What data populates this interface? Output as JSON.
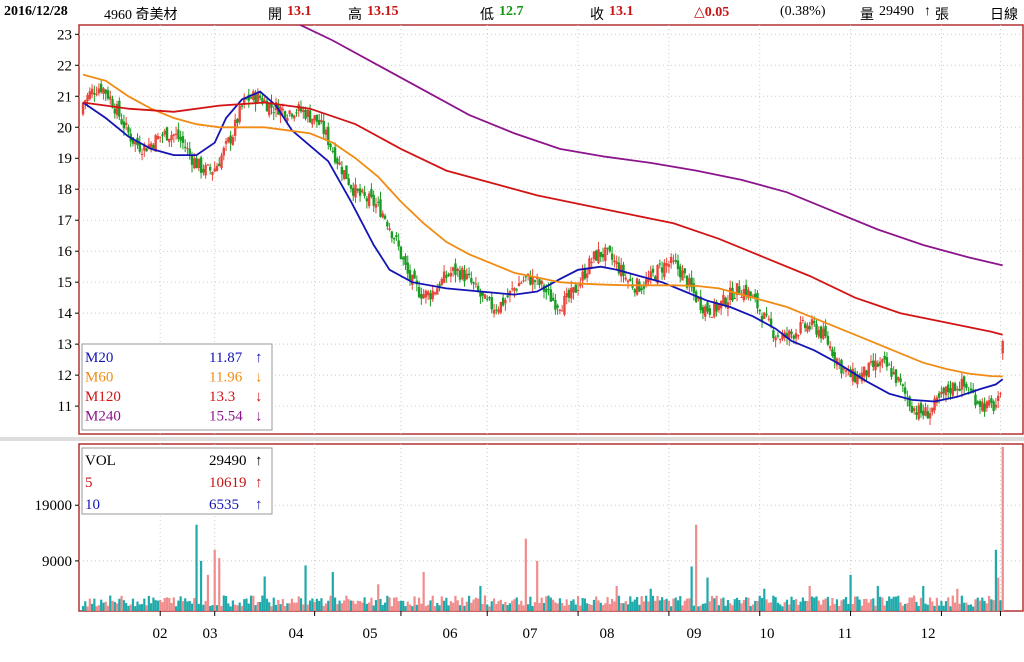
{
  "header": {
    "date": "2016/12/28",
    "stock": "4960 奇美材",
    "open_label": "開",
    "open": "13.1",
    "high_label": "高",
    "high": "13.15",
    "low_label": "低",
    "low": "12.7",
    "close_label": "收",
    "close": "13.1",
    "change": "△0.05",
    "change_pct": "(0.38%)",
    "volume_label": "量",
    "volume": "29490",
    "volume_unit": "張",
    "period": "日線"
  },
  "colors": {
    "up": "#E8453C",
    "down": "#1A9C22",
    "ma20": "#1414B4",
    "ma60": "#F08C14",
    "ma120": "#D21414",
    "ma240": "#8C148C",
    "vol_up": "#F08C8C",
    "vol_down": "#1EAAAA",
    "frame": "#B43232",
    "grid": "#CCCCCC"
  },
  "chart_data": [
    {
      "type": "candlestick",
      "y_ticks": [
        11,
        12,
        13,
        14,
        15,
        16,
        17,
        18,
        19,
        20,
        21,
        22,
        23
      ],
      "ylim": [
        10.1,
        23.3
      ],
      "x_ticks": [
        "02",
        "03",
        "04",
        "05",
        "06",
        "07",
        "08",
        "09",
        "10",
        "11",
        "12"
      ],
      "legend": [
        {
          "name": "M20",
          "value": "11.87",
          "arrow": "↑"
        },
        {
          "name": "M60",
          "value": "11.96",
          "arrow": "↓"
        },
        {
          "name": "M120",
          "value": "13.3",
          "arrow": "↓"
        },
        {
          "name": "M240",
          "value": "15.54",
          "arrow": "↓"
        }
      ],
      "ma_series": {
        "M20": [
          [
            0,
            20.8
          ],
          [
            10,
            20.3
          ],
          [
            20,
            19.7
          ],
          [
            30,
            19.3
          ],
          [
            40,
            19.1
          ],
          [
            50,
            19.1
          ],
          [
            58,
            19.5
          ],
          [
            63,
            20.3
          ],
          [
            70,
            20.9
          ],
          [
            78,
            21.15
          ],
          [
            85,
            20.7
          ],
          [
            92,
            19.9
          ],
          [
            100,
            19.4
          ],
          [
            108,
            18.9
          ],
          [
            118,
            17.6
          ],
          [
            128,
            16.2
          ],
          [
            135,
            15.4
          ],
          [
            145,
            15.0
          ],
          [
            160,
            14.8
          ],
          [
            175,
            14.7
          ],
          [
            190,
            14.6
          ],
          [
            200,
            14.7
          ],
          [
            210,
            15.1
          ],
          [
            218,
            15.4
          ],
          [
            228,
            15.5
          ],
          [
            235,
            15.4
          ],
          [
            245,
            15.2
          ],
          [
            255,
            15.0
          ],
          [
            265,
            14.7
          ],
          [
            275,
            14.4
          ],
          [
            285,
            14.2
          ],
          [
            295,
            13.9
          ],
          [
            305,
            13.5
          ],
          [
            312,
            13.1
          ],
          [
            322,
            12.8
          ],
          [
            332,
            12.4
          ],
          [
            345,
            11.8
          ],
          [
            355,
            11.4
          ],
          [
            365,
            11.2
          ],
          [
            375,
            11.15
          ],
          [
            385,
            11.3
          ],
          [
            395,
            11.55
          ],
          [
            402,
            11.7
          ],
          [
            405,
            11.87
          ]
        ],
        "M60": [
          [
            0,
            21.7
          ],
          [
            10,
            21.5
          ],
          [
            20,
            21.0
          ],
          [
            30,
            20.6
          ],
          [
            40,
            20.3
          ],
          [
            50,
            20.1
          ],
          [
            60,
            20.0
          ],
          [
            70,
            20.0
          ],
          [
            80,
            20.0
          ],
          [
            90,
            19.9
          ],
          [
            100,
            19.8
          ],
          [
            110,
            19.5
          ],
          [
            120,
            19.0
          ],
          [
            130,
            18.4
          ],
          [
            140,
            17.6
          ],
          [
            150,
            16.9
          ],
          [
            160,
            16.3
          ],
          [
            170,
            15.9
          ],
          [
            180,
            15.6
          ],
          [
            190,
            15.3
          ],
          [
            200,
            15.15
          ],
          [
            210,
            15.0
          ],
          [
            220,
            14.95
          ],
          [
            230,
            14.92
          ],
          [
            240,
            14.9
          ],
          [
            250,
            14.9
          ],
          [
            260,
            14.9
          ],
          [
            270,
            14.88
          ],
          [
            280,
            14.8
          ],
          [
            290,
            14.6
          ],
          [
            300,
            14.4
          ],
          [
            310,
            14.2
          ],
          [
            320,
            13.9
          ],
          [
            330,
            13.6
          ],
          [
            340,
            13.3
          ],
          [
            350,
            13.0
          ],
          [
            360,
            12.7
          ],
          [
            370,
            12.4
          ],
          [
            380,
            12.2
          ],
          [
            390,
            12.05
          ],
          [
            400,
            11.97
          ],
          [
            405,
            11.96
          ]
        ],
        "M120": [
          [
            0,
            20.8
          ],
          [
            20,
            20.6
          ],
          [
            40,
            20.5
          ],
          [
            60,
            20.7
          ],
          [
            80,
            20.8
          ],
          [
            100,
            20.6
          ],
          [
            120,
            20.1
          ],
          [
            140,
            19.3
          ],
          [
            160,
            18.6
          ],
          [
            180,
            18.2
          ],
          [
            200,
            17.8
          ],
          [
            220,
            17.5
          ],
          [
            240,
            17.2
          ],
          [
            260,
            16.9
          ],
          [
            280,
            16.4
          ],
          [
            300,
            15.8
          ],
          [
            320,
            15.2
          ],
          [
            340,
            14.5
          ],
          [
            360,
            14.0
          ],
          [
            380,
            13.7
          ],
          [
            400,
            13.4
          ],
          [
            405,
            13.3
          ]
        ],
        "M240": [
          [
            90,
            23.5
          ],
          [
            110,
            22.8
          ],
          [
            130,
            22.0
          ],
          [
            150,
            21.2
          ],
          [
            170,
            20.4
          ],
          [
            190,
            19.8
          ],
          [
            210,
            19.3
          ],
          [
            230,
            19.05
          ],
          [
            250,
            18.85
          ],
          [
            270,
            18.6
          ],
          [
            290,
            18.3
          ],
          [
            310,
            17.9
          ],
          [
            330,
            17.3
          ],
          [
            350,
            16.7
          ],
          [
            370,
            16.2
          ],
          [
            390,
            15.8
          ],
          [
            405,
            15.54
          ]
        ]
      }
    },
    {
      "type": "bar",
      "y_ticks": [
        9000,
        19000
      ],
      "ylim": [
        0,
        30000
      ],
      "x_ticks": [
        "02",
        "03",
        "04",
        "05",
        "06",
        "07",
        "08",
        "09",
        "10",
        "11",
        "12"
      ],
      "legend": [
        {
          "name": "VOL",
          "value": "29490",
          "arrow": "↑"
        },
        {
          "name": "5",
          "value": "10619",
          "arrow": "↑"
        },
        {
          "name": "10",
          "value": "6535",
          "arrow": "↑"
        }
      ],
      "spikes": [
        [
          50,
          15500
        ],
        [
          52,
          9000
        ],
        [
          55,
          6500
        ],
        [
          58,
          11000
        ],
        [
          60,
          9500
        ],
        [
          80,
          6200
        ],
        [
          98,
          8200
        ],
        [
          110,
          7000
        ],
        [
          130,
          4800
        ],
        [
          150,
          7000
        ],
        [
          175,
          4500
        ],
        [
          195,
          13000
        ],
        [
          200,
          9000
        ],
        [
          235,
          4500
        ],
        [
          250,
          4000
        ],
        [
          268,
          8000
        ],
        [
          270,
          15500
        ],
        [
          275,
          6000
        ],
        [
          300,
          4000
        ],
        [
          320,
          4500
        ],
        [
          338,
          6500
        ],
        [
          350,
          4500
        ],
        [
          370,
          4500
        ],
        [
          385,
          4000
        ],
        [
          402,
          11000
        ],
        [
          403,
          6000
        ],
        [
          405,
          29490
        ]
      ]
    }
  ]
}
